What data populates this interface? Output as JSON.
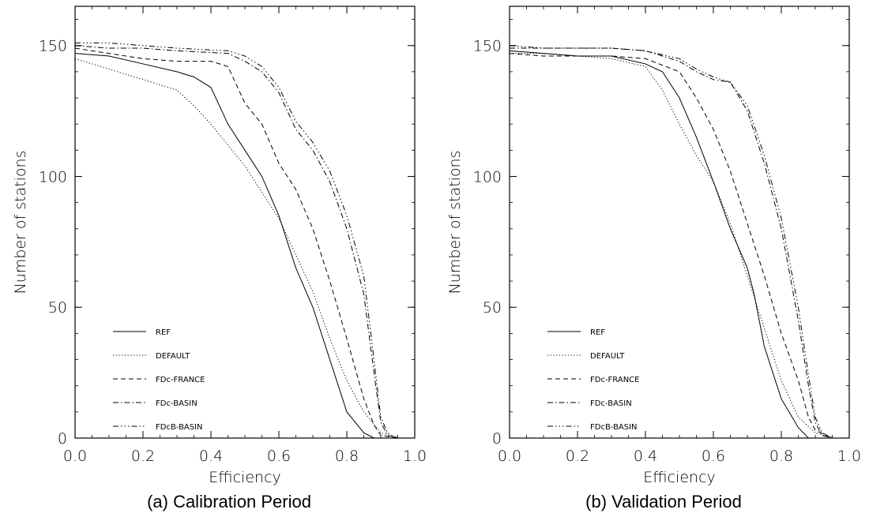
{
  "chart_data": [
    {
      "type": "line",
      "caption": "(a) Calibration Period",
      "xlabel": "Efficiency",
      "ylabel": "Number of stations",
      "xlim": [
        0.0,
        1.0
      ],
      "ylim": [
        0,
        165
      ],
      "xticks": [
        "0.0",
        "0.2",
        "0.4",
        "0.6",
        "0.8",
        "1.0"
      ],
      "yticks": [
        "0",
        "50",
        "100",
        "150"
      ],
      "legend_position": "bottom-left",
      "series": [
        {
          "name": "REF",
          "dash": "solid",
          "points": [
            [
              0,
              147
            ],
            [
              0.1,
              146
            ],
            [
              0.2,
              143
            ],
            [
              0.3,
              140
            ],
            [
              0.35,
              138
            ],
            [
              0.4,
              134
            ],
            [
              0.45,
              120
            ],
            [
              0.5,
              110
            ],
            [
              0.55,
              100
            ],
            [
              0.6,
              85
            ],
            [
              0.65,
              65
            ],
            [
              0.7,
              50
            ],
            [
              0.75,
              30
            ],
            [
              0.8,
              10
            ],
            [
              0.85,
              2
            ],
            [
              0.88,
              0
            ],
            [
              0.95,
              0
            ]
          ]
        },
        {
          "name": "DEFAULT",
          "dash": "dotted",
          "points": [
            [
              0,
              145
            ],
            [
              0.1,
              141
            ],
            [
              0.2,
              137
            ],
            [
              0.3,
              133
            ],
            [
              0.35,
              127
            ],
            [
              0.4,
              120
            ],
            [
              0.45,
              112
            ],
            [
              0.5,
              104
            ],
            [
              0.55,
              94
            ],
            [
              0.6,
              84
            ],
            [
              0.65,
              70
            ],
            [
              0.7,
              56
            ],
            [
              0.75,
              38
            ],
            [
              0.8,
              22
            ],
            [
              0.85,
              10
            ],
            [
              0.9,
              2
            ],
            [
              0.95,
              0
            ]
          ]
        },
        {
          "name": "FDc-FRANCE",
          "dash": "dashed",
          "points": [
            [
              0,
              149
            ],
            [
              0.1,
              147
            ],
            [
              0.2,
              145
            ],
            [
              0.3,
              144
            ],
            [
              0.4,
              144
            ],
            [
              0.45,
              142
            ],
            [
              0.5,
              128
            ],
            [
              0.55,
              120
            ],
            [
              0.6,
              105
            ],
            [
              0.65,
              95
            ],
            [
              0.7,
              80
            ],
            [
              0.75,
              60
            ],
            [
              0.8,
              38
            ],
            [
              0.85,
              15
            ],
            [
              0.88,
              5
            ],
            [
              0.9,
              1
            ],
            [
              0.95,
              0
            ]
          ]
        },
        {
          "name": "FDc-BASIN",
          "dash": "dashdot",
          "points": [
            [
              0,
              150
            ],
            [
              0.1,
              149
            ],
            [
              0.2,
              149
            ],
            [
              0.3,
              148
            ],
            [
              0.45,
              147
            ],
            [
              0.5,
              144
            ],
            [
              0.55,
              140
            ],
            [
              0.6,
              132
            ],
            [
              0.65,
              118
            ],
            [
              0.7,
              110
            ],
            [
              0.75,
              98
            ],
            [
              0.8,
              80
            ],
            [
              0.85,
              55
            ],
            [
              0.88,
              25
            ],
            [
              0.9,
              6
            ],
            [
              0.92,
              1
            ],
            [
              0.95,
              0
            ]
          ]
        },
        {
          "name": "FDcB-BASIN",
          "dash": "dashdotdotdot",
          "points": [
            [
              0,
              151
            ],
            [
              0.1,
              151
            ],
            [
              0.2,
              150
            ],
            [
              0.3,
              149
            ],
            [
              0.45,
              148
            ],
            [
              0.5,
              146
            ],
            [
              0.55,
              142
            ],
            [
              0.6,
              134
            ],
            [
              0.65,
              121
            ],
            [
              0.7,
              113
            ],
            [
              0.75,
              102
            ],
            [
              0.8,
              85
            ],
            [
              0.85,
              62
            ],
            [
              0.88,
              30
            ],
            [
              0.9,
              8
            ],
            [
              0.92,
              2
            ],
            [
              0.95,
              0
            ]
          ]
        }
      ]
    },
    {
      "type": "line",
      "caption": "(b) Validation Period",
      "xlabel": "Efficiency",
      "ylabel": "Number of stations",
      "xlim": [
        0.0,
        1.0
      ],
      "ylim": [
        0,
        165
      ],
      "xticks": [
        "0.0",
        "0.2",
        "0.4",
        "0.6",
        "0.8",
        "1.0"
      ],
      "yticks": [
        "0",
        "50",
        "100",
        "150"
      ],
      "legend_position": "bottom-left",
      "series": [
        {
          "name": "REF",
          "dash": "solid",
          "points": [
            [
              0,
              148
            ],
            [
              0.1,
              147
            ],
            [
              0.2,
              146
            ],
            [
              0.3,
              146
            ],
            [
              0.4,
              143
            ],
            [
              0.45,
              140
            ],
            [
              0.5,
              130
            ],
            [
              0.55,
              115
            ],
            [
              0.6,
              98
            ],
            [
              0.65,
              80
            ],
            [
              0.7,
              65
            ],
            [
              0.72,
              55
            ],
            [
              0.75,
              35
            ],
            [
              0.8,
              15
            ],
            [
              0.85,
              4
            ],
            [
              0.88,
              0
            ],
            [
              0.95,
              0
            ]
          ]
        },
        {
          "name": "DEFAULT",
          "dash": "dotted",
          "points": [
            [
              0,
              147
            ],
            [
              0.1,
              147
            ],
            [
              0.2,
              146
            ],
            [
              0.3,
              145
            ],
            [
              0.4,
              142
            ],
            [
              0.45,
              133
            ],
            [
              0.5,
              120
            ],
            [
              0.55,
              108
            ],
            [
              0.6,
              98
            ],
            [
              0.65,
              82
            ],
            [
              0.7,
              62
            ],
            [
              0.75,
              42
            ],
            [
              0.8,
              22
            ],
            [
              0.85,
              8
            ],
            [
              0.9,
              2
            ],
            [
              0.95,
              0
            ]
          ]
        },
        {
          "name": "FDc-FRANCE",
          "dash": "dashed",
          "points": [
            [
              0,
              147
            ],
            [
              0.1,
              146
            ],
            [
              0.2,
              146
            ],
            [
              0.3,
              146
            ],
            [
              0.4,
              145
            ],
            [
              0.5,
              140
            ],
            [
              0.55,
              130
            ],
            [
              0.6,
              118
            ],
            [
              0.65,
              102
            ],
            [
              0.7,
              82
            ],
            [
              0.75,
              62
            ],
            [
              0.8,
              40
            ],
            [
              0.85,
              22
            ],
            [
              0.88,
              8
            ],
            [
              0.9,
              3
            ],
            [
              0.95,
              0
            ]
          ]
        },
        {
          "name": "FDc-BASIN",
          "dash": "dashdot",
          "points": [
            [
              0,
              149
            ],
            [
              0.1,
              149
            ],
            [
              0.2,
              149
            ],
            [
              0.3,
              149
            ],
            [
              0.4,
              148
            ],
            [
              0.5,
              144
            ],
            [
              0.55,
              140
            ],
            [
              0.6,
              137
            ],
            [
              0.65,
              136
            ],
            [
              0.7,
              125
            ],
            [
              0.75,
              105
            ],
            [
              0.8,
              80
            ],
            [
              0.85,
              45
            ],
            [
              0.88,
              20
            ],
            [
              0.9,
              6
            ],
            [
              0.92,
              1
            ],
            [
              0.95,
              0
            ]
          ]
        },
        {
          "name": "FDcB-BASIN",
          "dash": "dashdotdotdot",
          "points": [
            [
              0,
              150
            ],
            [
              0.1,
              149
            ],
            [
              0.2,
              149
            ],
            [
              0.3,
              149
            ],
            [
              0.4,
              148
            ],
            [
              0.5,
              145
            ],
            [
              0.55,
              141
            ],
            [
              0.6,
              138
            ],
            [
              0.65,
              136
            ],
            [
              0.7,
              127
            ],
            [
              0.75,
              108
            ],
            [
              0.8,
              84
            ],
            [
              0.85,
              50
            ],
            [
              0.88,
              24
            ],
            [
              0.9,
              8
            ],
            [
              0.92,
              2
            ],
            [
              0.95,
              0
            ]
          ]
        }
      ]
    }
  ]
}
